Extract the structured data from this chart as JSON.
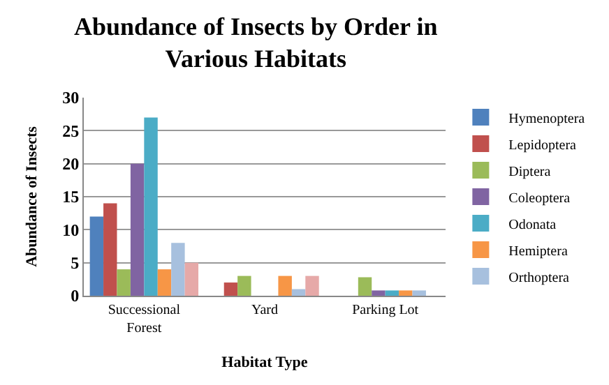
{
  "chart_data": {
    "type": "bar",
    "title": "Abundance of Insects by Order in Various Habitats",
    "xlabel": "Habitat Type",
    "ylabel": "Abundance of Insects",
    "categories": [
      "Successional Forest",
      "Yard",
      "Parking Lot"
    ],
    "series": [
      {
        "name": "Hymenoptera",
        "color": "#4f81bd",
        "values": [
          12,
          0,
          0
        ]
      },
      {
        "name": "Lepidoptera",
        "color": "#c0504d",
        "values": [
          14,
          2,
          0
        ]
      },
      {
        "name": "Diptera",
        "color": "#9bbb59",
        "values": [
          4,
          3,
          2.8
        ]
      },
      {
        "name": "Coleoptera",
        "color": "#8064a2",
        "values": [
          20,
          0,
          0.8
        ]
      },
      {
        "name": "Odonata",
        "color": "#4bacc6",
        "values": [
          27,
          0,
          0.8
        ]
      },
      {
        "name": "Hemiptera",
        "color": "#f79646",
        "values": [
          4,
          3,
          0.8
        ]
      },
      {
        "name": "Orthoptera",
        "color": "#a7c0de",
        "values": [
          8,
          1,
          0.8
        ]
      },
      {
        "color": "#e6a9a8",
        "values": [
          5,
          3,
          0
        ]
      }
    ],
    "ylim": [
      0,
      30
    ],
    "yticks": [
      0,
      5,
      10,
      15,
      20,
      25,
      30
    ],
    "grid": "y",
    "legend": "right"
  }
}
